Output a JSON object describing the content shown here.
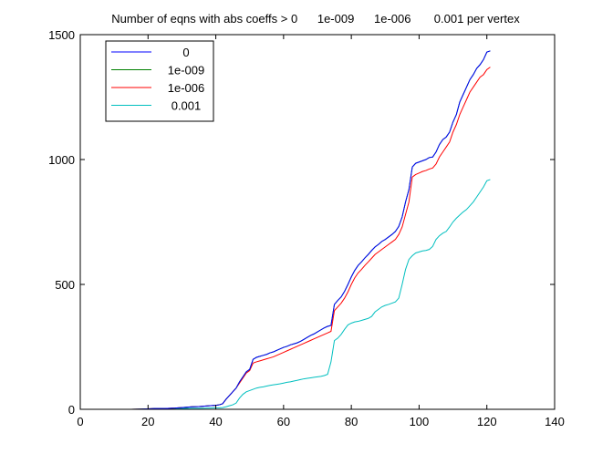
{
  "chart_data": {
    "type": "line",
    "title": "Number of eqns with abs coeffs > 0      1e-009      1e-006       0.001 per vertex",
    "xlabel": "",
    "ylabel": "",
    "xlim": [
      0,
      140
    ],
    "ylim": [
      0,
      1500
    ],
    "xticks": [
      0,
      20,
      40,
      60,
      80,
      100,
      120,
      140
    ],
    "yticks": [
      0,
      500,
      1000,
      1500
    ],
    "xtick_labels": [
      "0",
      "20",
      "40",
      "60",
      "80",
      "100",
      "120",
      "140"
    ],
    "ytick_labels": [
      "0",
      "500",
      "1000",
      "1500"
    ],
    "grid": false,
    "legend_position": "top-left",
    "x": [
      0,
      5,
      10,
      15,
      18,
      20,
      22,
      25,
      28,
      30,
      33,
      35,
      38,
      40,
      41,
      42,
      43,
      44,
      45,
      46,
      47,
      48,
      49,
      50,
      51,
      52,
      53,
      54,
      55,
      56,
      57,
      58,
      59,
      60,
      61,
      62,
      63,
      64,
      65,
      66,
      67,
      68,
      69,
      70,
      71,
      72,
      73,
      74,
      75,
      76,
      77,
      78,
      79,
      80,
      81,
      82,
      83,
      84,
      85,
      86,
      87,
      88,
      89,
      90,
      91,
      92,
      93,
      94,
      95,
      96,
      97,
      98,
      99,
      100,
      101,
      102,
      103,
      104,
      105,
      106,
      107,
      108,
      109,
      110,
      111,
      112,
      113,
      114,
      115,
      116,
      117,
      118,
      119,
      120,
      121
    ],
    "series": [
      {
        "name": "0",
        "color": "#0000ff",
        "values": [
          0,
          0,
          0,
          0,
          1,
          2,
          3,
          3,
          5,
          7,
          10,
          11,
          14,
          16,
          18,
          22,
          40,
          55,
          70,
          85,
          110,
          130,
          150,
          160,
          200,
          208,
          212,
          216,
          220,
          226,
          230,
          236,
          242,
          248,
          252,
          258,
          262,
          266,
          272,
          280,
          288,
          296,
          302,
          310,
          318,
          326,
          332,
          336,
          420,
          436,
          450,
          472,
          500,
          530,
          556,
          576,
          590,
          606,
          620,
          636,
          650,
          660,
          672,
          680,
          690,
          700,
          712,
          732,
          770,
          830,
          880,
          970,
          985,
          990,
          995,
          1000,
          1008,
          1010,
          1030,
          1060,
          1080,
          1090,
          1110,
          1150,
          1180,
          1230,
          1260,
          1290,
          1320,
          1340,
          1365,
          1380,
          1400,
          1430,
          1435
        ]
      },
      {
        "name": "1e-009",
        "color": "#008000",
        "values": [
          0,
          0,
          0,
          0,
          1,
          2,
          3,
          3,
          5,
          7,
          10,
          11,
          14,
          16,
          18,
          22,
          40,
          55,
          70,
          85,
          110,
          130,
          150,
          160,
          200,
          208,
          212,
          216,
          220,
          226,
          230,
          236,
          242,
          248,
          252,
          258,
          262,
          266,
          272,
          280,
          288,
          296,
          302,
          310,
          318,
          326,
          332,
          336,
          420,
          436,
          450,
          472,
          500,
          530,
          556,
          576,
          590,
          606,
          620,
          636,
          650,
          660,
          672,
          680,
          690,
          700,
          712,
          732,
          770,
          830,
          880,
          970,
          985,
          990,
          995,
          1000,
          1008,
          1010,
          1030,
          1060,
          1080,
          1090,
          1110,
          1150,
          1180,
          1230,
          1260,
          1290,
          1320,
          1340,
          1365,
          1380,
          1400,
          1430,
          1435
        ]
      },
      {
        "name": "1e-006",
        "color": "#ff0000",
        "values": [
          0,
          0,
          0,
          0,
          1,
          2,
          3,
          3,
          5,
          7,
          10,
          11,
          14,
          16,
          18,
          22,
          40,
          55,
          70,
          85,
          105,
          125,
          145,
          155,
          185,
          190,
          194,
          198,
          202,
          206,
          210,
          216,
          222,
          228,
          234,
          240,
          246,
          252,
          258,
          264,
          270,
          276,
          282,
          288,
          294,
          300,
          306,
          312,
          395,
          410,
          425,
          445,
          470,
          500,
          526,
          546,
          560,
          576,
          590,
          605,
          620,
          630,
          640,
          650,
          660,
          670,
          680,
          700,
          730,
          780,
          830,
          930,
          940,
          946,
          952,
          956,
          962,
          966,
          982,
          1010,
          1030,
          1050,
          1070,
          1110,
          1140,
          1180,
          1210,
          1240,
          1270,
          1290,
          1310,
          1330,
          1340,
          1360,
          1370
        ]
      },
      {
        "name": "0.001",
        "color": "#00bfbf",
        "values": [
          0,
          0,
          0,
          0,
          0,
          0,
          1,
          1,
          2,
          3,
          4,
          4,
          5,
          6,
          6,
          7,
          10,
          14,
          18,
          25,
          45,
          60,
          70,
          75,
          80,
          85,
          88,
          90,
          93,
          96,
          98,
          100,
          102,
          105,
          108,
          110,
          113,
          116,
          119,
          122,
          124,
          126,
          128,
          130,
          132,
          135,
          140,
          190,
          275,
          285,
          300,
          320,
          338,
          345,
          350,
          352,
          356,
          360,
          364,
          372,
          390,
          400,
          410,
          416,
          420,
          425,
          430,
          445,
          500,
          560,
          600,
          615,
          626,
          630,
          634,
          636,
          640,
          652,
          680,
          695,
          705,
          712,
          730,
          750,
          765,
          778,
          790,
          800,
          815,
          830,
          850,
          870,
          890,
          915,
          920
        ]
      }
    ]
  }
}
